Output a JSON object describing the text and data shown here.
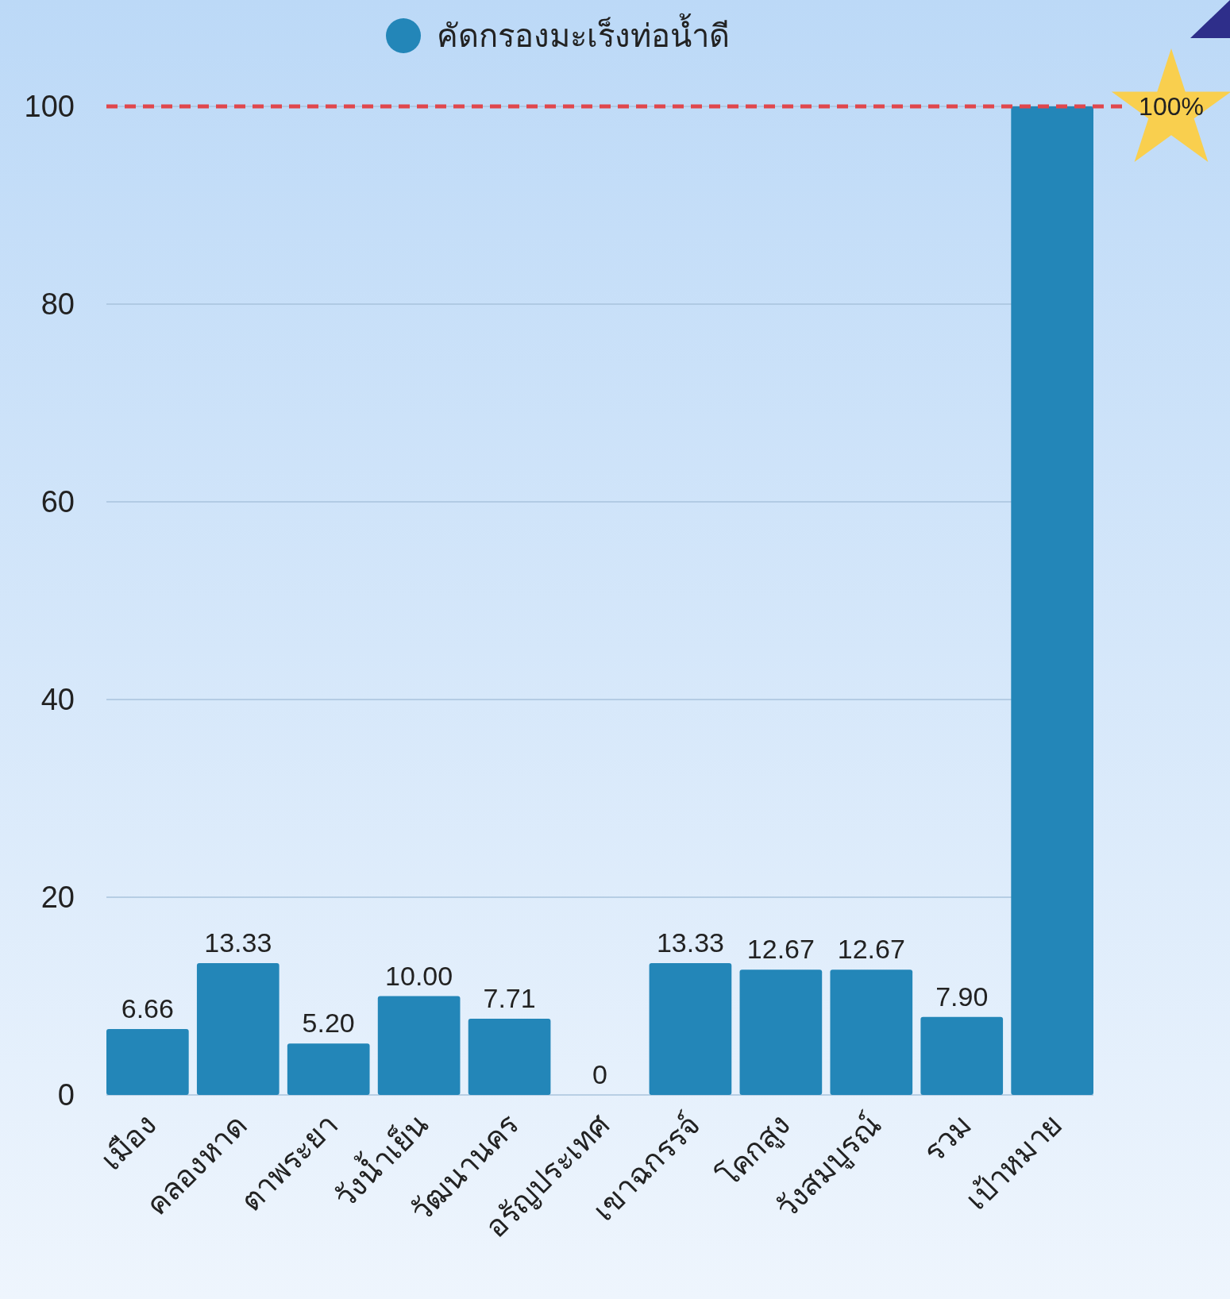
{
  "chart_data": {
    "type": "bar",
    "categories": [
      "เมือง",
      "คลองหาด",
      "ตาพระยา",
      "วังน้ำเย็น",
      "วัฒนานคร",
      "อรัญประเทศ",
      "เขาฉกรรจ์",
      "โคกสูง",
      "วังสมบูรณ์",
      "รวม",
      "เป้าหมาย"
    ],
    "series": [
      {
        "name": "คัดกรองมะเร็งท่อน้ำดี",
        "color": "#2386b8",
        "values": [
          6.66,
          13.33,
          5.2,
          10.0,
          7.71,
          0,
          13.33,
          12.67,
          12.67,
          7.9,
          100
        ]
      }
    ],
    "value_labels": [
      "6.66",
      "13.33",
      "5.20",
      "10.00",
      "7.71",
      "0",
      "13.33",
      "12.67",
      "12.67",
      "7.90",
      null
    ],
    "ylim": [
      0,
      100
    ],
    "yticks": [
      0,
      20,
      40,
      60,
      80,
      100
    ],
    "grid": "y",
    "legend": "top",
    "ref_lines": [
      {
        "axis": "y",
        "value": 100,
        "label": "100%",
        "color": "#e0474c",
        "line_style": "dashed"
      }
    ]
  }
}
